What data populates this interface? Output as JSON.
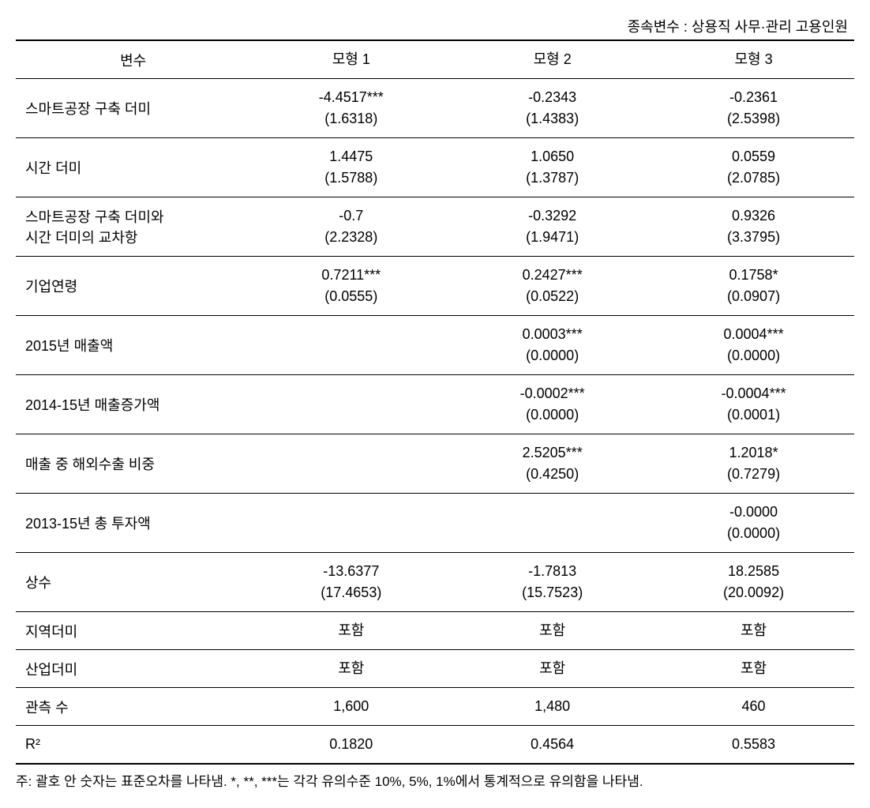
{
  "caption": "종속변수 : 상용직 사무·관리 고용인원",
  "header": {
    "var": "변수",
    "m1": "모형 1",
    "m2": "모형 2",
    "m3": "모형 3"
  },
  "rows": [
    {
      "label": "스마트공장 구축 더미",
      "m1": {
        "coef": "-4.4517***",
        "se": "(1.6318)"
      },
      "m2": {
        "coef": "-0.2343",
        "se": "(1.4383)"
      },
      "m3": {
        "coef": "-0.2361",
        "se": "(2.5398)"
      }
    },
    {
      "label": "시간 더미",
      "m1": {
        "coef": "1.4475",
        "se": "(1.5788)"
      },
      "m2": {
        "coef": "1.0650",
        "se": "(1.3787)"
      },
      "m3": {
        "coef": "0.0559",
        "se": "(2.0785)"
      }
    },
    {
      "label": "스마트공장 구축 더미와\n시간 더미의 교차항",
      "m1": {
        "coef": "-0.7",
        "se": "(2.2328)"
      },
      "m2": {
        "coef": "-0.3292",
        "se": "(1.9471)"
      },
      "m3": {
        "coef": "0.9326",
        "se": "(3.3795)"
      }
    },
    {
      "label": "기업연령",
      "m1": {
        "coef": "0.7211***",
        "se": "(0.0555)"
      },
      "m2": {
        "coef": "0.2427***",
        "se": "(0.0522)"
      },
      "m3": {
        "coef": "0.1758*",
        "se": "(0.0907)"
      }
    },
    {
      "label": "2015년 매출액",
      "m1": null,
      "m2": {
        "coef": "0.0003***",
        "se": "(0.0000)"
      },
      "m3": {
        "coef": "0.0004***",
        "se": "(0.0000)"
      }
    },
    {
      "label": "2014-15년 매출증가액",
      "m1": null,
      "m2": {
        "coef": "-0.0002***",
        "se": "(0.0000)"
      },
      "m3": {
        "coef": "-0.0004***",
        "se": "(0.0001)"
      }
    },
    {
      "label": "매출 중 해외수출 비중",
      "m1": null,
      "m2": {
        "coef": "2.5205***",
        "se": "(0.4250)"
      },
      "m3": {
        "coef": "1.2018*",
        "se": "(0.7279)"
      }
    },
    {
      "label": "2013-15년 총 투자액",
      "m1": null,
      "m2": null,
      "m3": {
        "coef": "-0.0000",
        "se": "(0.0000)"
      }
    },
    {
      "label": "상수",
      "m1": {
        "coef": "-13.6377",
        "se": "(17.4653)"
      },
      "m2": {
        "coef": "-1.7813",
        "se": "(15.7523)"
      },
      "m3": {
        "coef": "18.2585",
        "se": "(20.0092)"
      }
    }
  ],
  "simple_rows": [
    {
      "label": "지역더미",
      "m1": "포함",
      "m2": "포함",
      "m3": "포함"
    },
    {
      "label": "산업더미",
      "m1": "포함",
      "m2": "포함",
      "m3": "포함"
    },
    {
      "label": "관측 수",
      "m1": "1,600",
      "m2": "1,480",
      "m3": "460"
    },
    {
      "label": "R²",
      "m1": "0.1820",
      "m2": "0.4564",
      "m3": "0.5583"
    }
  ],
  "footnote": {
    "label": "주:",
    "text": "괄호 안 숫자는 표준오차를 나타냄. *, **, ***는 각각 유의수준 10%, 5%, 1%에서 통계적으로 유의함을 나타냄."
  }
}
